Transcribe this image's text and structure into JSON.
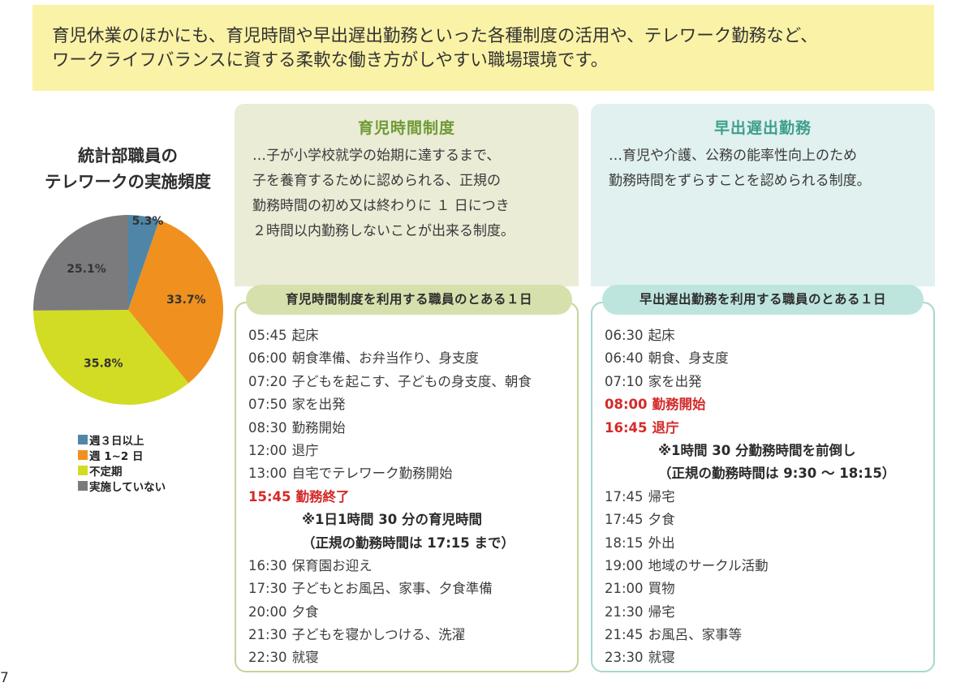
{
  "intro": {
    "line1": "育児休業のほかにも、育児時間や早出遅出勤務といった各種制度の活用や、テレワーク勤務など、",
    "line2": "ワークライフバランスに資する柔軟な働き方がしやすい職場環境です。"
  },
  "pie": {
    "title_line1": "統計部職員の",
    "title_line2": "テレワークの実施頻度",
    "legend": [
      {
        "label": "週３日以上",
        "color": "#4f86a8"
      },
      {
        "label": "週 1~2 日",
        "color": "#f0901e"
      },
      {
        "label": "不定期",
        "color": "#d2dc24"
      },
      {
        "label": "実施していない",
        "color": "#7b7b7d"
      }
    ]
  },
  "chart_data": {
    "type": "pie",
    "title": "統計部職員のテレワークの実施頻度",
    "categories": [
      "週３日以上",
      "週 1~2 日",
      "不定期",
      "実施していない"
    ],
    "values": [
      5.3,
      33.7,
      35.8,
      25.1
    ],
    "labels": [
      "5.3%",
      "33.7%",
      "35.8%",
      "25.1%"
    ],
    "colors": [
      "#4f86a8",
      "#f0901e",
      "#d2dc24",
      "#7b7b7d"
    ]
  },
  "left": {
    "heading": "育児時間制度",
    "desc": [
      "…子が小学校就学の始期に達するまで、",
      "子を養育するために認められる、正規の",
      "勤務時間の初め又は終わりに １ 日につき",
      "２時間以内勤務しないことが出来る制度。"
    ],
    "pill": "育児時間制度を利用する職員のとある１日",
    "schedule": [
      {
        "time": "05:45",
        "text": "起床",
        "style": ""
      },
      {
        "time": "06:00",
        "text": "朝食準備、お弁当作り、身支度",
        "style": ""
      },
      {
        "time": "07:20",
        "text": "子どもを起こす、子どもの身支度、朝食",
        "style": ""
      },
      {
        "time": "07:50",
        "text": "家を出発",
        "style": ""
      },
      {
        "time": "08:30",
        "text": "勤務開始",
        "style": ""
      },
      {
        "time": "12:00",
        "text": "退庁",
        "style": ""
      },
      {
        "time": "13:00",
        "text": "自宅でテレワーク勤務開始",
        "style": ""
      },
      {
        "time": "15:45",
        "text": "勤務終了",
        "style": "hl"
      },
      {
        "time": "",
        "text": "※1日1時間 30 分の育児時間",
        "style": "note"
      },
      {
        "time": "",
        "text": "（正規の勤務時間は 17:15 まで）",
        "style": "note"
      },
      {
        "time": "16:30",
        "text": "保育園お迎え",
        "style": ""
      },
      {
        "time": "17:30",
        "text": "子どもとお風呂、家事、夕食準備",
        "style": ""
      },
      {
        "time": "20:00",
        "text": "夕食",
        "style": ""
      },
      {
        "time": "21:30",
        "text": "子どもを寝かしつける、洗濯",
        "style": ""
      },
      {
        "time": "22:30",
        "text": "就寝",
        "style": ""
      }
    ]
  },
  "right": {
    "heading": "早出遅出勤務",
    "desc": [
      "…育児や介護、公務の能率性向上のため",
      "勤務時間をずらすことを認められる制度。"
    ],
    "pill": "早出遅出勤務を利用する職員のとある１日",
    "schedule": [
      {
        "time": "06:30",
        "text": "起床",
        "style": ""
      },
      {
        "time": "06:40",
        "text": "朝食、身支度",
        "style": ""
      },
      {
        "time": "07:10",
        "text": "家を出発",
        "style": ""
      },
      {
        "time": "08:00",
        "text": "勤務開始",
        "style": "hl"
      },
      {
        "time": "16:45",
        "text": "退庁",
        "style": "hl"
      },
      {
        "time": "",
        "text": "※1時間 30 分勤務時間を前倒し",
        "style": "note"
      },
      {
        "time": "",
        "text": "（正規の勤務時間は 9:30 ～ 18:15）",
        "style": "note"
      },
      {
        "time": "17:45",
        "text": "帰宅",
        "style": ""
      },
      {
        "time": "17:45",
        "text": "夕食",
        "style": ""
      },
      {
        "time": "18:15",
        "text": "外出",
        "style": ""
      },
      {
        "time": "19:00",
        "text": "地域のサークル活動",
        "style": ""
      },
      {
        "time": "21:00",
        "text": "買物",
        "style": ""
      },
      {
        "time": "21:30",
        "text": "帰宅",
        "style": ""
      },
      {
        "time": "21:45",
        "text": "お風呂、家事等",
        "style": ""
      },
      {
        "time": "23:30",
        "text": "就寝",
        "style": ""
      }
    ]
  },
  "page_number": "7"
}
